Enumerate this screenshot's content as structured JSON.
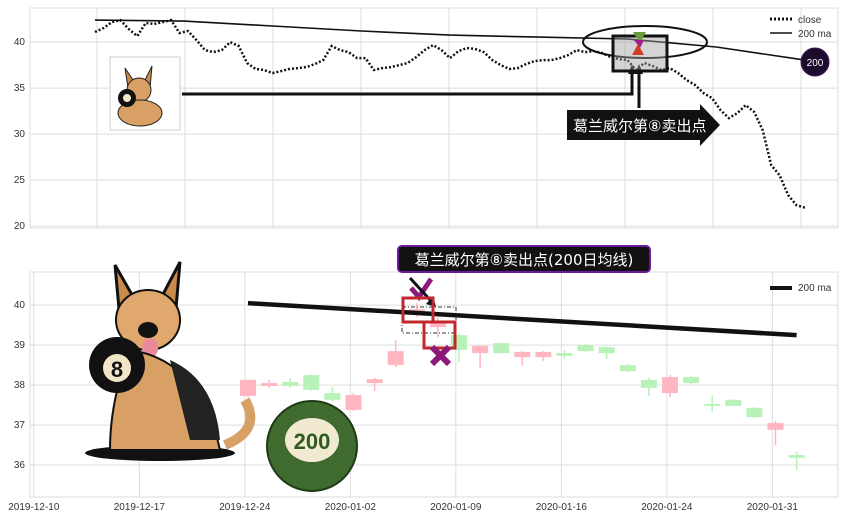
{
  "colors": {
    "up_candle": "#ffb6c1",
    "down_candle": "#b8f2b8",
    "badge": "#1c0b2b",
    "title_border": "#6a1b9a",
    "marker": "#8b1a7a",
    "highlight_box": "#c0282d",
    "ball_green": "#3f6b2e"
  },
  "chart_data": [
    {
      "type": "line",
      "panel": "top",
      "ylim": [
        19.8,
        43.7
      ],
      "yticks": [
        20,
        25,
        30,
        35,
        40
      ],
      "grid": true,
      "legend": {
        "placement": "top-right",
        "entries": [
          "close",
          "200 ma"
        ]
      },
      "series": [
        {
          "name": "close",
          "style": "dotted",
          "values": [
            41.09,
            41.52,
            42.17,
            42.39,
            41.41,
            40.65,
            42.07,
            41.96,
            42.17,
            42.39,
            40.98,
            41.2,
            40.22,
            39.13,
            38.91,
            39.13,
            40,
            39.57,
            37.72,
            37.07,
            36.96,
            36.63,
            36.85,
            37.07,
            37.17,
            37.28,
            37.61,
            38.04,
            39.57,
            39.13,
            38.91,
            38.26,
            38.26,
            36.96,
            37.17,
            37.28,
            37.5,
            37.72,
            38.37,
            39.13,
            39.67,
            39.13,
            38.26,
            39.02,
            39.35,
            39.24,
            38.91,
            38.04,
            37.5,
            37.07,
            37.17,
            37.61,
            37.93,
            38.04,
            38.04,
            38.26,
            38.59,
            39.13,
            38.91,
            39.02,
            38.8,
            38.37,
            38.15,
            38.04,
            36.96,
            37.72,
            37.39,
            36.96,
            37.17,
            36.63,
            35.87,
            35.33,
            34.46,
            33.91,
            32.61,
            31.74,
            32.28,
            33.15,
            32.39,
            30.43,
            26.63,
            25.54,
            23.37,
            22.28,
            22.0
          ]
        },
        {
          "name": "200 ma",
          "style": "solid",
          "values": [
            42.39,
            42.28,
            41.74,
            41.2,
            40.76,
            40.54,
            40.33,
            39.46,
            38.04
          ]
        }
      ],
      "annotations": {
        "sell_label": "葛兰威尔第⑧卖出点",
        "badge": "200"
      }
    },
    {
      "type": "candlestick",
      "panel": "bottom",
      "ylim": [
        35.2,
        40.83
      ],
      "yticks": [
        36,
        37,
        38,
        39,
        40
      ],
      "grid": true,
      "xticks": [
        "2019-12-10",
        "2019-12-17",
        "2019-12-24",
        "2020-01-02",
        "2020-01-09",
        "2020-01-16",
        "2020-01-24",
        "2020-01-31"
      ],
      "legend": {
        "placement": "top-right",
        "entries": [
          "200 ma"
        ]
      },
      "title": "葛兰威尔第⑧卖出点(200日均线)",
      "candles": [
        {
          "o": 37.73,
          "c": 38.13,
          "h": 38.15,
          "l": 37.7
        },
        {
          "o": 37.98,
          "c": 38.05,
          "h": 38.13,
          "l": 37.93
        },
        {
          "o": 38.08,
          "c": 37.98,
          "h": 38.18,
          "l": 37.93
        },
        {
          "o": 38.25,
          "c": 37.88,
          "h": 38.27,
          "l": 37.86
        },
        {
          "o": 37.8,
          "c": 37.63,
          "h": 37.95,
          "l": 37.58
        },
        {
          "o": 37.38,
          "c": 37.75,
          "h": 37.8,
          "l": 37.35
        },
        {
          "o": 38.05,
          "c": 38.15,
          "h": 38.18,
          "l": 37.85
        },
        {
          "o": 38.5,
          "c": 38.85,
          "h": 39.13,
          "l": 38.45
        },
        {
          "o": 39.85,
          "c": 39.9,
          "h": 40.05,
          "l": 39.7
        },
        {
          "o": 39.45,
          "c": 39.6,
          "h": 39.7,
          "l": 39.2
        },
        {
          "o": 39.25,
          "c": 38.88,
          "h": 39.3,
          "l": 38.58
        },
        {
          "o": 38.8,
          "c": 38.98,
          "h": 39.0,
          "l": 38.43
        },
        {
          "o": 39.05,
          "c": 38.8,
          "h": 39.07,
          "l": 38.78
        },
        {
          "o": 38.7,
          "c": 38.83,
          "h": 38.85,
          "l": 38.48
        },
        {
          "o": 38.7,
          "c": 38.83,
          "h": 38.85,
          "l": 38.6
        },
        {
          "o": 38.8,
          "c": 38.73,
          "h": 38.88,
          "l": 38.65
        },
        {
          "o": 39.0,
          "c": 38.85,
          "h": 39.02,
          "l": 38.83
        },
        {
          "o": 38.95,
          "c": 38.8,
          "h": 38.97,
          "l": 38.65
        },
        {
          "o": 38.5,
          "c": 38.35,
          "h": 38.52,
          "l": 38.33
        },
        {
          "o": 38.13,
          "c": 37.93,
          "h": 38.18,
          "l": 37.73
        },
        {
          "o": 37.8,
          "c": 38.2,
          "h": 38.25,
          "l": 37.7
        },
        {
          "o": 38.2,
          "c": 38.05,
          "h": 38.22,
          "l": 38.03
        },
        {
          "o": 37.53,
          "c": 37.48,
          "h": 37.75,
          "l": 37.33
        },
        {
          "o": 37.63,
          "c": 37.48,
          "h": 37.65,
          "l": 37.46
        },
        {
          "o": 37.43,
          "c": 37.2,
          "h": 37.45,
          "l": 37.18
        },
        {
          "o": 36.88,
          "c": 37.05,
          "h": 37.1,
          "l": 36.5
        },
        {
          "o": 36.25,
          "c": 36.18,
          "h": 36.33,
          "l": 35.88
        }
      ],
      "ma200": {
        "name": "200 ma",
        "start": 40.05,
        "end": 39.25
      },
      "highlighted_candles": [
        8,
        9
      ],
      "badge": "200"
    }
  ]
}
